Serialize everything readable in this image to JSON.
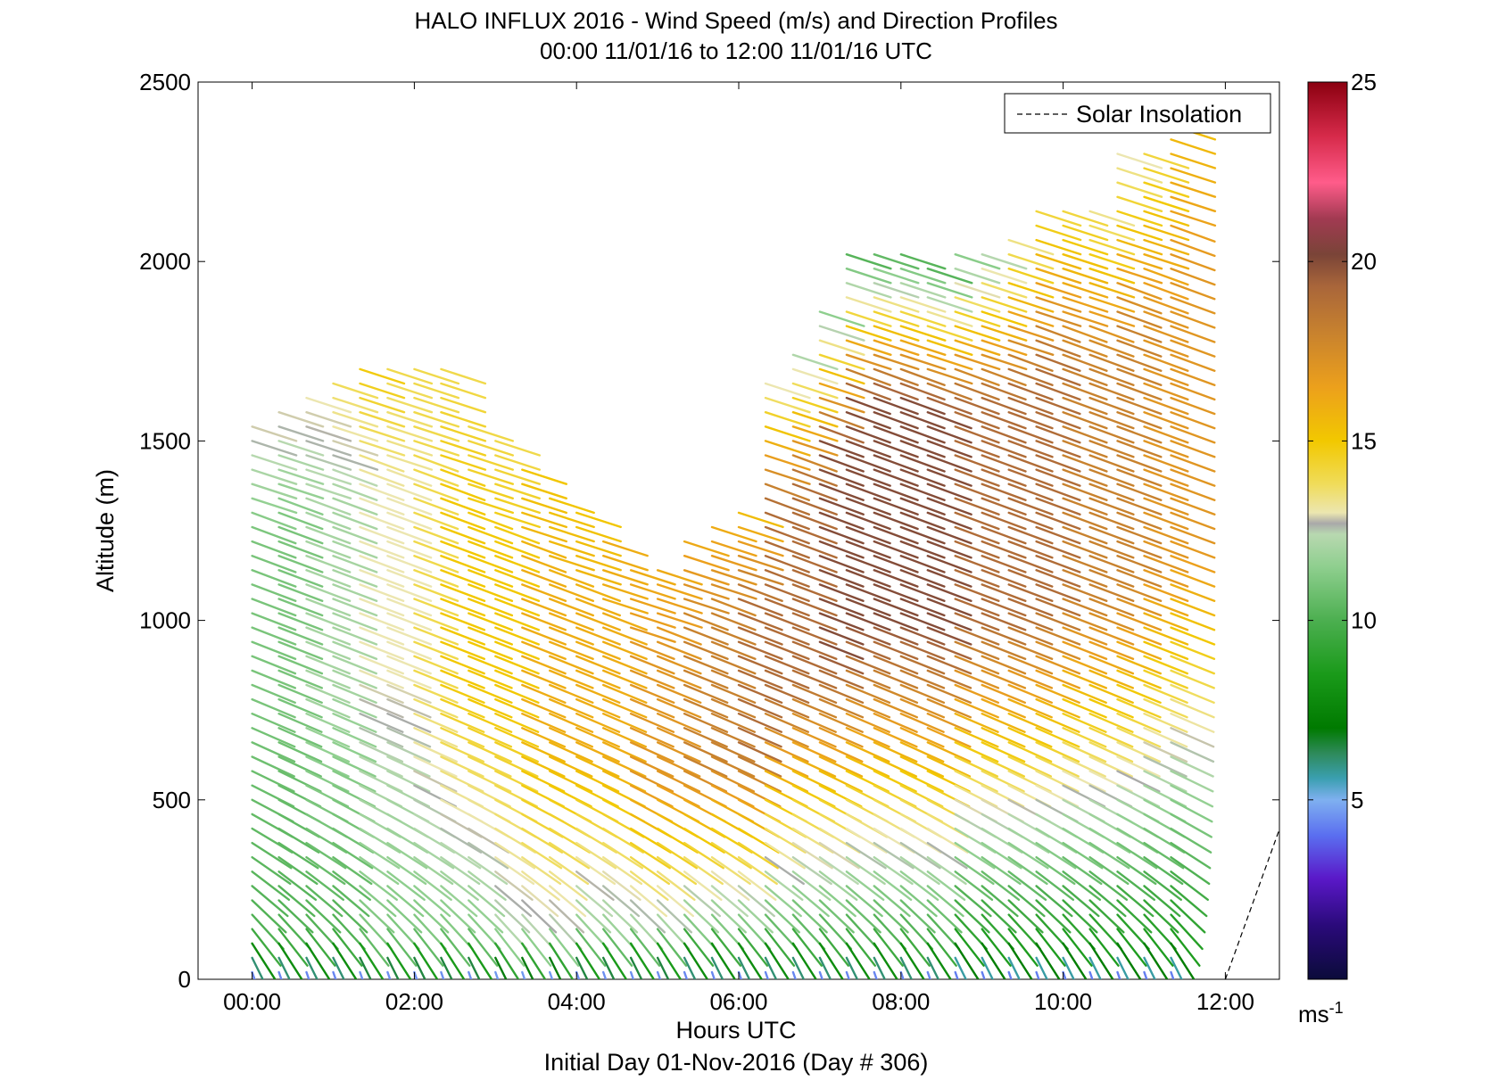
{
  "chart_data": {
    "type": "wind-barb-profile",
    "title": "HALO INFLUX 2016 - Wind Speed (m/s) and Direction Profiles",
    "subtitle": "00:00 11/01/16 to 12:00 11/01/16  UTC",
    "xlabel": "Hours UTC",
    "footer": "Initial Day 01-Nov-2016 (Day # 306)",
    "ylabel": "Altitude (m)",
    "xlim": [
      -0.6667,
      12.6667
    ],
    "ylim": [
      0,
      2500
    ],
    "x_ticks": [
      {
        "value": 0,
        "label": "00:00"
      },
      {
        "value": 2,
        "label": "02:00"
      },
      {
        "value": 4,
        "label": "04:00"
      },
      {
        "value": 6,
        "label": "06:00"
      },
      {
        "value": 8,
        "label": "08:00"
      },
      {
        "value": 10,
        "label": "10:00"
      },
      {
        "value": 12,
        "label": "12:00"
      }
    ],
    "y_ticks": [
      {
        "value": 0,
        "label": "0"
      },
      {
        "value": 500,
        "label": "500"
      },
      {
        "value": 1000,
        "label": "1000"
      },
      {
        "value": 1500,
        "label": "1500"
      },
      {
        "value": 2000,
        "label": "2000"
      },
      {
        "value": 2500,
        "label": "2500"
      }
    ],
    "colorbar": {
      "range": [
        0,
        25
      ],
      "ticks": [
        {
          "value": 5,
          "label": "5"
        },
        {
          "value": 10,
          "label": "10"
        },
        {
          "value": 15,
          "label": "15"
        },
        {
          "value": 20,
          "label": "20"
        },
        {
          "value": 25,
          "label": "25"
        }
      ],
      "unit_label": "ms",
      "unit_exponent": "-1",
      "stops": [
        {
          "value": 0.0,
          "color": "#0b0b3a"
        },
        {
          "value": 1.5,
          "color": "#2a0a7a"
        },
        {
          "value": 2.8,
          "color": "#5a18c8"
        },
        {
          "value": 4.0,
          "color": "#5a6ef0"
        },
        {
          "value": 5.0,
          "color": "#7fb0f0"
        },
        {
          "value": 5.6,
          "color": "#3a9fb0"
        },
        {
          "value": 6.3,
          "color": "#2e8a5a"
        },
        {
          "value": 7.0,
          "color": "#007a00"
        },
        {
          "value": 8.5,
          "color": "#1a9a1a"
        },
        {
          "value": 10.0,
          "color": "#4caf50"
        },
        {
          "value": 11.5,
          "color": "#8fcf8f"
        },
        {
          "value": 12.4,
          "color": "#b8d8b0"
        },
        {
          "value": 12.7,
          "color": "#a9a9a9"
        },
        {
          "value": 13.0,
          "color": "#ece6b0"
        },
        {
          "value": 13.8,
          "color": "#f0dc5a"
        },
        {
          "value": 15.0,
          "color": "#f2c800"
        },
        {
          "value": 16.5,
          "color": "#eca01c"
        },
        {
          "value": 18.0,
          "color": "#c8822e"
        },
        {
          "value": 19.3,
          "color": "#a9663a"
        },
        {
          "value": 20.2,
          "color": "#7a4438"
        },
        {
          "value": 21.2,
          "color": "#a23a52"
        },
        {
          "value": 22.2,
          "color": "#ff5c8a"
        },
        {
          "value": 23.5,
          "color": "#d62a4a"
        },
        {
          "value": 25.0,
          "color": "#8b0010"
        }
      ]
    },
    "legend": {
      "entries": [
        {
          "label": "Solar Insolation",
          "style": "dashed",
          "color": "#000000"
        }
      ],
      "placement": "top-right"
    },
    "profiles": [
      {
        "t": 0.0,
        "top": 1560,
        "s_low": 10,
        "s_mid": 11,
        "s_top": 13
      },
      {
        "t": 0.33,
        "top": 1600,
        "s_low": 10,
        "s_mid": 11,
        "s_top": 13
      },
      {
        "t": 0.67,
        "top": 1620,
        "s_low": 10,
        "s_mid": 12,
        "s_top": 13
      },
      {
        "t": 1.0,
        "top": 1690,
        "s_low": 10,
        "s_mid": 12,
        "s_top": 14
      },
      {
        "t": 1.33,
        "top": 1730,
        "s_low": 11,
        "s_mid": 13,
        "s_top": 15
      },
      {
        "t": 1.67,
        "top": 1710,
        "s_low": 11,
        "s_mid": 13,
        "s_top": 14
      },
      {
        "t": 2.0,
        "top": 1720,
        "s_low": 11,
        "s_mid": 14,
        "s_top": 14
      },
      {
        "t": 2.33,
        "top": 1700,
        "s_low": 11,
        "s_mid": 15,
        "s_top": 14
      },
      {
        "t": 2.67,
        "top": 1560,
        "s_low": 11,
        "s_mid": 15,
        "s_top": 14
      },
      {
        "t": 3.0,
        "top": 1500,
        "s_low": 12,
        "s_mid": 15,
        "s_top": 14
      },
      {
        "t": 3.33,
        "top": 1440,
        "s_low": 12,
        "s_mid": 16,
        "s_top": 15
      },
      {
        "t": 3.67,
        "top": 1370,
        "s_low": 12,
        "s_mid": 16,
        "s_top": 15
      },
      {
        "t": 4.0,
        "top": 1320,
        "s_low": 11,
        "s_mid": 16,
        "s_top": 15
      },
      {
        "t": 4.33,
        "top": 1230,
        "s_low": 11,
        "s_mid": 16,
        "s_top": 16
      },
      {
        "t": 4.67,
        "top": 1150,
        "s_low": 11,
        "s_mid": 17,
        "s_top": 16
      },
      {
        "t": 5.0,
        "top": 1170,
        "s_low": 11,
        "s_mid": 17,
        "s_top": 16
      },
      {
        "t": 5.33,
        "top": 1240,
        "s_low": 10,
        "s_mid": 18,
        "s_top": 16
      },
      {
        "t": 5.67,
        "top": 1270,
        "s_low": 10,
        "s_mid": 18,
        "s_top": 16
      },
      {
        "t": 6.0,
        "top": 1330,
        "s_low": 10,
        "s_mid": 19,
        "s_top": 15
      },
      {
        "t": 6.33,
        "top": 1660,
        "s_low": 10,
        "s_mid": 19,
        "s_top": 13
      },
      {
        "t": 6.67,
        "top": 1750,
        "s_low": 10,
        "s_mid": 19,
        "s_top": 12
      },
      {
        "t": 7.0,
        "top": 1880,
        "s_low": 10,
        "s_mid": 20,
        "s_top": 11
      },
      {
        "t": 7.33,
        "top": 2030,
        "s_low": 10,
        "s_mid": 20,
        "s_top": 10
      },
      {
        "t": 7.67,
        "top": 2040,
        "s_low": 10,
        "s_mid": 20,
        "s_top": 10
      },
      {
        "t": 8.0,
        "top": 2030,
        "s_low": 10,
        "s_mid": 20,
        "s_top": 10
      },
      {
        "t": 8.33,
        "top": 1990,
        "s_low": 10,
        "s_mid": 20,
        "s_top": 10
      },
      {
        "t": 8.67,
        "top": 2040,
        "s_low": 9,
        "s_mid": 19,
        "s_top": 11
      },
      {
        "t": 9.0,
        "top": 2040,
        "s_low": 9,
        "s_mid": 19,
        "s_top": 12
      },
      {
        "t": 9.33,
        "top": 2090,
        "s_low": 9,
        "s_mid": 19,
        "s_top": 13
      },
      {
        "t": 9.67,
        "top": 2160,
        "s_low": 9,
        "s_mid": 19,
        "s_top": 14
      },
      {
        "t": 10.0,
        "top": 2160,
        "s_low": 9,
        "s_mid": 18,
        "s_top": 14
      },
      {
        "t": 10.33,
        "top": 2170,
        "s_low": 9,
        "s_mid": 18,
        "s_top": 13
      },
      {
        "t": 10.67,
        "top": 2300,
        "s_low": 9,
        "s_mid": 18,
        "s_top": 13
      },
      {
        "t": 11.0,
        "top": 2330,
        "s_low": 9,
        "s_mid": 17,
        "s_top": 14
      },
      {
        "t": 11.33,
        "top": 2490,
        "s_low": 9,
        "s_mid": 17,
        "s_top": 15
      }
    ],
    "solar_insolation": [
      {
        "t": 12.0,
        "alt": 0
      },
      {
        "t": 12.67,
        "alt": 420
      }
    ]
  }
}
